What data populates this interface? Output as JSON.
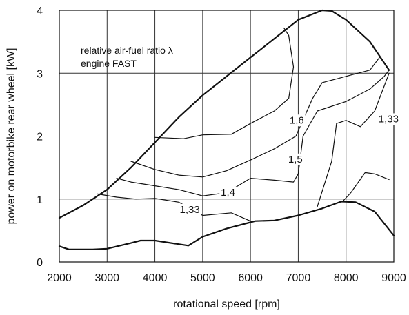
{
  "chart_data": {
    "type": "line",
    "title": "",
    "xlabel": "rotational speed [rpm]",
    "ylabel": "power on motorbike rear wheel  [kW]",
    "xlim": [
      2000,
      9000
    ],
    "ylim": [
      0,
      4
    ],
    "xticks": [
      "2000",
      "3000",
      "4000",
      "5000",
      "6000",
      "7000",
      "8000",
      "9000"
    ],
    "yticks": [
      "0",
      "1",
      "2",
      "3",
      "4"
    ],
    "grid": true,
    "annotations": [
      "relative air-fuel ratio λ",
      "engine FAST"
    ],
    "series": [
      {
        "name": "",
        "role": "upper envelope",
        "points": [
          [
            2000,
            0.7
          ],
          [
            2500,
            0.9
          ],
          [
            3000,
            1.15
          ],
          [
            3500,
            1.5
          ],
          [
            4000,
            1.9
          ],
          [
            4500,
            2.3
          ],
          [
            5000,
            2.65
          ],
          [
            6000,
            3.25
          ],
          [
            7000,
            3.85
          ],
          [
            7500,
            4.0
          ],
          [
            7700,
            3.99
          ],
          [
            8000,
            3.85
          ],
          [
            8500,
            3.5
          ],
          [
            8900,
            3.05
          ]
        ]
      },
      {
        "name": "",
        "role": "lower envelope",
        "points": [
          [
            2000,
            0.25
          ],
          [
            2200,
            0.2
          ],
          [
            2700,
            0.2
          ],
          [
            3000,
            0.21
          ],
          [
            3500,
            0.3
          ],
          [
            3700,
            0.34
          ],
          [
            4000,
            0.34
          ],
          [
            4700,
            0.26
          ],
          [
            5000,
            0.4
          ],
          [
            5500,
            0.53
          ],
          [
            6000,
            0.63
          ],
          [
            6100,
            0.65
          ],
          [
            6500,
            0.66
          ],
          [
            7000,
            0.74
          ],
          [
            7500,
            0.85
          ],
          [
            7900,
            0.96
          ],
          [
            8200,
            0.95
          ],
          [
            8600,
            0.8
          ],
          [
            9000,
            0.42
          ]
        ]
      },
      {
        "name": "1,6",
        "points": [
          [
            4000,
            1.98
          ],
          [
            4600,
            1.96
          ],
          [
            5000,
            2.02
          ],
          [
            5600,
            2.03
          ],
          [
            6000,
            2.2
          ],
          [
            6500,
            2.4
          ],
          [
            6800,
            2.6
          ],
          [
            6900,
            3.1
          ],
          [
            6800,
            3.6
          ],
          [
            6700,
            3.72
          ]
        ]
      },
      {
        "name": "1,5",
        "points": [
          [
            3500,
            1.6
          ],
          [
            4000,
            1.47
          ],
          [
            4500,
            1.38
          ],
          [
            5000,
            1.35
          ],
          [
            5500,
            1.45
          ],
          [
            6000,
            1.62
          ],
          [
            6500,
            1.8
          ],
          [
            6950,
            2.0
          ],
          [
            7300,
            2.6
          ],
          [
            7500,
            2.85
          ],
          [
            8000,
            2.95
          ],
          [
            8500,
            3.05
          ],
          [
            8700,
            3.25
          ]
        ]
      },
      {
        "name": "1,4",
        "points": [
          [
            3200,
            1.33
          ],
          [
            3500,
            1.27
          ],
          [
            4000,
            1.21
          ],
          [
            4500,
            1.15
          ],
          [
            5000,
            1.05
          ],
          [
            5500,
            1.1
          ],
          [
            6000,
            1.33
          ],
          [
            6500,
            1.3
          ],
          [
            6900,
            1.27
          ],
          [
            7000,
            1.4
          ],
          [
            7100,
            2.0
          ],
          [
            7400,
            2.4
          ],
          [
            8000,
            2.55
          ],
          [
            8500,
            2.75
          ],
          [
            8800,
            2.95
          ],
          [
            8900,
            3.05
          ]
        ]
      },
      {
        "name": "1,33",
        "points": [
          [
            2800,
            1.08
          ],
          [
            3200,
            1.03
          ],
          [
            3600,
            1.0
          ],
          [
            4000,
            1.01
          ],
          [
            4500,
            0.95
          ],
          [
            5000,
            0.74
          ],
          [
            5600,
            0.78
          ],
          [
            6000,
            0.65
          ]
        ]
      },
      {
        "name": "1,33",
        "points": [
          [
            7400,
            0.88
          ],
          [
            7700,
            1.6
          ],
          [
            7800,
            2.2
          ],
          [
            8000,
            2.25
          ],
          [
            8300,
            2.15
          ],
          [
            8600,
            2.4
          ],
          [
            8900,
            3.0
          ]
        ]
      },
      {
        "name": "",
        "points": [
          [
            7950,
            0.98
          ],
          [
            8100,
            1.1
          ],
          [
            8400,
            1.42
          ],
          [
            8600,
            1.4
          ],
          [
            8900,
            1.31
          ]
        ]
      }
    ],
    "series_labels": [
      {
        "text": "1,6",
        "x": 6970,
        "y": 2.2
      },
      {
        "text": "1,5",
        "x": 6940,
        "y": 1.58
      },
      {
        "text": "1,4",
        "x": 5530,
        "y": 1.05
      },
      {
        "text": "1,33",
        "x": 4730,
        "y": 0.78
      },
      {
        "text": "1,33",
        "x": 8890,
        "y": 2.22
      }
    ]
  }
}
